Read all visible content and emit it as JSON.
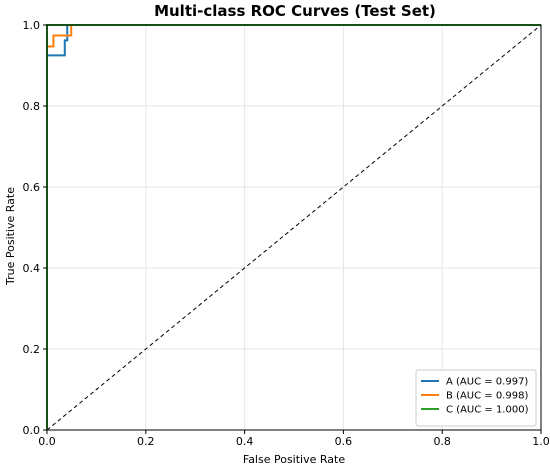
{
  "chart_data": {
    "type": "line",
    "title": "Multi-class ROC Curves (Test Set)",
    "xlabel": "False Positive Rate",
    "ylabel": "True Positive Rate",
    "xlim": [
      0,
      1
    ],
    "ylim": [
      0,
      1
    ],
    "xticks": [
      "0.0",
      "0.2",
      "0.4",
      "0.6",
      "0.8",
      "1.0"
    ],
    "yticks": [
      "0.0",
      "0.2",
      "0.4",
      "0.6",
      "0.8",
      "1.0"
    ],
    "grid": true,
    "legend_position": "lower-right",
    "series": [
      {
        "name": "A (AUC = 0.997)",
        "color": "#1f77b4",
        "x": [
          0,
          0,
          0.036,
          0.036,
          0.041,
          0.041,
          1.0
        ],
        "y": [
          0,
          0.925,
          0.925,
          0.962,
          0.962,
          1.0,
          1.0
        ]
      },
      {
        "name": "B (AUC = 0.998)",
        "color": "#ff7f0e",
        "x": [
          0,
          0,
          0.013,
          0.013,
          0.049,
          0.049,
          1.0
        ],
        "y": [
          0,
          0.947,
          0.947,
          0.974,
          0.974,
          1.0,
          1.0
        ]
      },
      {
        "name": "C (AUC = 1.000)",
        "color": "#2ca02c",
        "x": [
          0,
          0,
          1.0
        ],
        "y": [
          0,
          1.0,
          1.0
        ]
      }
    ],
    "reference_line": {
      "x": [
        0,
        1
      ],
      "y": [
        0,
        1
      ],
      "color": "#000000",
      "style": "dashed"
    }
  }
}
